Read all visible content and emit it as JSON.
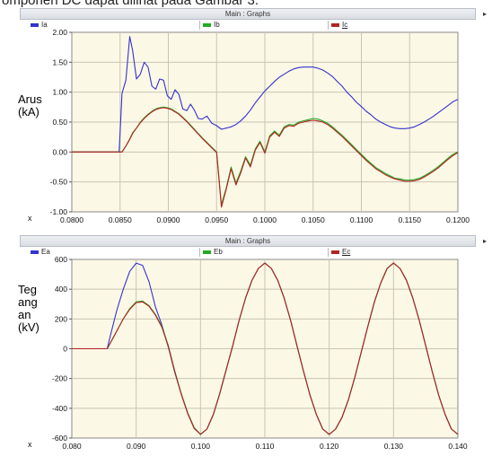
{
  "caption": "omponen DC dapat dilihat pada Gambar 3.",
  "colors": {
    "phase_a": "#3333cc",
    "phase_b": "#22aa22",
    "phase_c": "#b22222",
    "plot_bg": "#fcf8e6",
    "grid": "#c9c5b3"
  },
  "panels": [
    {
      "header": "Main : Graphs",
      "x_axis_symbol": "x",
      "ylabel_lines": [
        "Arus",
        "(kA)"
      ],
      "legend": [
        "Ia",
        "Ib",
        "Ic"
      ]
    },
    {
      "header": "Main : Graphs",
      "x_axis_symbol": "x",
      "ylabel_lines": [
        "Teg",
        "ang",
        "an",
        "(kV)"
      ],
      "legend": [
        "Ea",
        "Eb",
        "Ec"
      ]
    }
  ],
  "chart_data": [
    {
      "type": "line",
      "title": "Main : Graphs",
      "ylabel": "Arus (kA)",
      "xlim": [
        0.08,
        0.12
      ],
      "ylim": [
        -1.0,
        2.0
      ],
      "xticks": [
        "0.0800",
        "0.0850",
        "0.0900",
        "0.0950",
        "0.1000",
        "0.1050",
        "0.1100",
        "0.1150",
        "0.1200"
      ],
      "yticks": [
        "2.00",
        "1.50",
        "1.00",
        "0.50",
        "0.00",
        "-0.50",
        "-1.00"
      ],
      "legend_position": "top",
      "grid": true,
      "x": [
        0.08,
        0.0849,
        0.0852,
        0.0856,
        0.086,
        0.0863,
        0.0867,
        0.0871,
        0.0875,
        0.0879,
        0.0883,
        0.0887,
        0.0891,
        0.0895,
        0.0899,
        0.0903,
        0.0907,
        0.0911,
        0.0915,
        0.0919,
        0.0923,
        0.0927,
        0.0931,
        0.0935,
        0.094,
        0.0945,
        0.095,
        0.0955,
        0.096,
        0.0965,
        0.097,
        0.0975,
        0.098,
        0.0985,
        0.099,
        0.0995,
        0.1,
        0.1005,
        0.101,
        0.1015,
        0.102,
        0.1025,
        0.103,
        0.1035,
        0.104,
        0.1045,
        0.105,
        0.1055,
        0.106,
        0.1065,
        0.107,
        0.1075,
        0.108,
        0.1085,
        0.109,
        0.1095,
        0.11,
        0.1105,
        0.111,
        0.1115,
        0.112,
        0.1125,
        0.113,
        0.1135,
        0.114,
        0.1145,
        0.115,
        0.1155,
        0.116,
        0.1165,
        0.117,
        0.1175,
        0.118,
        0.1185,
        0.119,
        0.1195,
        0.12
      ],
      "series": [
        {
          "name": "Ia",
          "values": [
            0,
            0,
            0.98,
            1.2,
            1.93,
            1.7,
            1.22,
            1.3,
            1.5,
            1.42,
            1.1,
            1.05,
            1.22,
            1.2,
            0.94,
            0.88,
            1.04,
            0.96,
            0.72,
            0.69,
            0.8,
            0.7,
            0.56,
            0.55,
            0.6,
            0.48,
            0.44,
            0.38,
            0.4,
            0.42,
            0.46,
            0.52,
            0.6,
            0.7,
            0.82,
            0.92,
            1.02,
            1.1,
            1.18,
            1.25,
            1.3,
            1.35,
            1.39,
            1.41,
            1.42,
            1.42,
            1.42,
            1.4,
            1.37,
            1.32,
            1.26,
            1.18,
            1.1,
            1.0,
            0.92,
            0.83,
            0.76,
            0.68,
            0.62,
            0.55,
            0.5,
            0.46,
            0.42,
            0.4,
            0.39,
            0.39,
            0.4,
            0.42,
            0.46,
            0.5,
            0.55,
            0.6,
            0.66,
            0.72,
            0.78,
            0.84,
            0.88
          ]
        },
        {
          "name": "Ib",
          "values": [
            0,
            0,
            0,
            0.1,
            0.22,
            0.32,
            0.4,
            0.5,
            0.57,
            0.63,
            0.68,
            0.72,
            0.74,
            0.75,
            0.74,
            0.72,
            0.68,
            0.64,
            0.58,
            0.52,
            0.45,
            0.38,
            0.31,
            0.24,
            0.16,
            0.08,
            0.0,
            -0.88,
            -0.6,
            -0.25,
            -0.52,
            -0.32,
            -0.08,
            -0.22,
            0.05,
            0.18,
            0.0,
            0.27,
            0.35,
            0.28,
            0.42,
            0.46,
            0.45,
            0.5,
            0.52,
            0.54,
            0.56,
            0.55,
            0.52,
            0.48,
            0.42,
            0.35,
            0.28,
            0.2,
            0.12,
            0.04,
            -0.04,
            -0.12,
            -0.19,
            -0.26,
            -0.31,
            -0.36,
            -0.4,
            -0.44,
            -0.45,
            -0.47,
            -0.47,
            -0.46,
            -0.44,
            -0.4,
            -0.35,
            -0.3,
            -0.24,
            -0.17,
            -0.1,
            -0.04,
            0.0
          ]
        },
        {
          "name": "Ic",
          "values": [
            0,
            0,
            0,
            0.1,
            0.21,
            0.31,
            0.4,
            0.49,
            0.56,
            0.62,
            0.67,
            0.71,
            0.73,
            0.74,
            0.73,
            0.71,
            0.67,
            0.63,
            0.57,
            0.51,
            0.44,
            0.37,
            0.3,
            0.23,
            0.15,
            0.07,
            -0.01,
            -0.92,
            -0.62,
            -0.28,
            -0.55,
            -0.35,
            -0.1,
            -0.25,
            0.03,
            0.16,
            -0.02,
            0.25,
            0.33,
            0.26,
            0.4,
            0.44,
            0.43,
            0.48,
            0.5,
            0.52,
            0.53,
            0.52,
            0.5,
            0.46,
            0.4,
            0.33,
            0.26,
            0.18,
            0.1,
            0.02,
            -0.06,
            -0.14,
            -0.21,
            -0.28,
            -0.33,
            -0.38,
            -0.42,
            -0.45,
            -0.47,
            -0.49,
            -0.49,
            -0.48,
            -0.46,
            -0.42,
            -0.37,
            -0.32,
            -0.26,
            -0.19,
            -0.12,
            -0.06,
            -0.01
          ]
        }
      ]
    },
    {
      "type": "line",
      "title": "Main : Graphs",
      "ylabel": "Tegangan (kV)",
      "xlim": [
        0.08,
        0.14
      ],
      "ylim": [
        -600,
        600
      ],
      "xticks": [
        "0.080",
        "0.090",
        "0.100",
        "0.110",
        "0.120",
        "0.130",
        "0.140"
      ],
      "yticks": [
        "600",
        "400",
        "200",
        "0",
        "-200",
        "-400",
        "-600"
      ],
      "legend_position": "top",
      "grid": true,
      "x": [
        0.08,
        0.0855,
        0.086,
        0.087,
        0.088,
        0.089,
        0.09,
        0.091,
        0.092,
        0.093,
        0.094,
        0.095,
        0.096,
        0.097,
        0.098,
        0.099,
        0.1,
        0.101,
        0.102,
        0.103,
        0.104,
        0.105,
        0.106,
        0.107,
        0.108,
        0.109,
        0.11,
        0.111,
        0.112,
        0.113,
        0.114,
        0.115,
        0.116,
        0.117,
        0.118,
        0.119,
        0.12,
        0.121,
        0.122,
        0.123,
        0.124,
        0.125,
        0.126,
        0.127,
        0.128,
        0.129,
        0.13,
        0.131,
        0.132,
        0.133,
        0.134,
        0.135,
        0.136,
        0.137,
        0.138,
        0.139,
        0.14
      ],
      "series": [
        {
          "name": "Ea",
          "values": [
            0,
            0,
            90,
            260,
            400,
            520,
            575,
            560,
            450,
            280,
            160,
            10,
            -160,
            -300,
            -430,
            -530,
            -575,
            -540,
            -440,
            -300,
            -140,
            20,
            190,
            340,
            460,
            540,
            575,
            540,
            460,
            340,
            190,
            20,
            -150,
            -310,
            -440,
            -540,
            -575,
            -540,
            -460,
            -340,
            -190,
            -20,
            150,
            310,
            440,
            540,
            575,
            540,
            460,
            340,
            190,
            20,
            -150,
            -310,
            -440,
            -540,
            -575
          ]
        },
        {
          "name": "Eb",
          "values": [
            0,
            0,
            40,
            120,
            200,
            270,
            315,
            320,
            290,
            230,
            150,
            20,
            -150,
            -300,
            -430,
            -530,
            -575,
            -540,
            -440,
            -300,
            -140,
            20,
            190,
            340,
            460,
            540,
            575,
            540,
            460,
            340,
            190,
            20,
            -150,
            -310,
            -440,
            -540,
            -575,
            -540,
            -460,
            -340,
            -190,
            -20,
            150,
            310,
            440,
            540,
            575,
            540,
            460,
            340,
            190,
            20,
            -150,
            -310,
            -440,
            -540,
            -575
          ]
        },
        {
          "name": "Ec",
          "values": [
            0,
            0,
            40,
            120,
            200,
            265,
            310,
            315,
            285,
            225,
            145,
            15,
            -155,
            -305,
            -435,
            -535,
            -575,
            -540,
            -440,
            -300,
            -140,
            20,
            190,
            340,
            460,
            540,
            575,
            540,
            460,
            340,
            190,
            20,
            -150,
            -310,
            -440,
            -540,
            -575,
            -540,
            -460,
            -340,
            -190,
            -20,
            150,
            310,
            440,
            540,
            575,
            540,
            460,
            340,
            190,
            20,
            -150,
            -310,
            -440,
            -540,
            -575
          ]
        }
      ]
    }
  ]
}
